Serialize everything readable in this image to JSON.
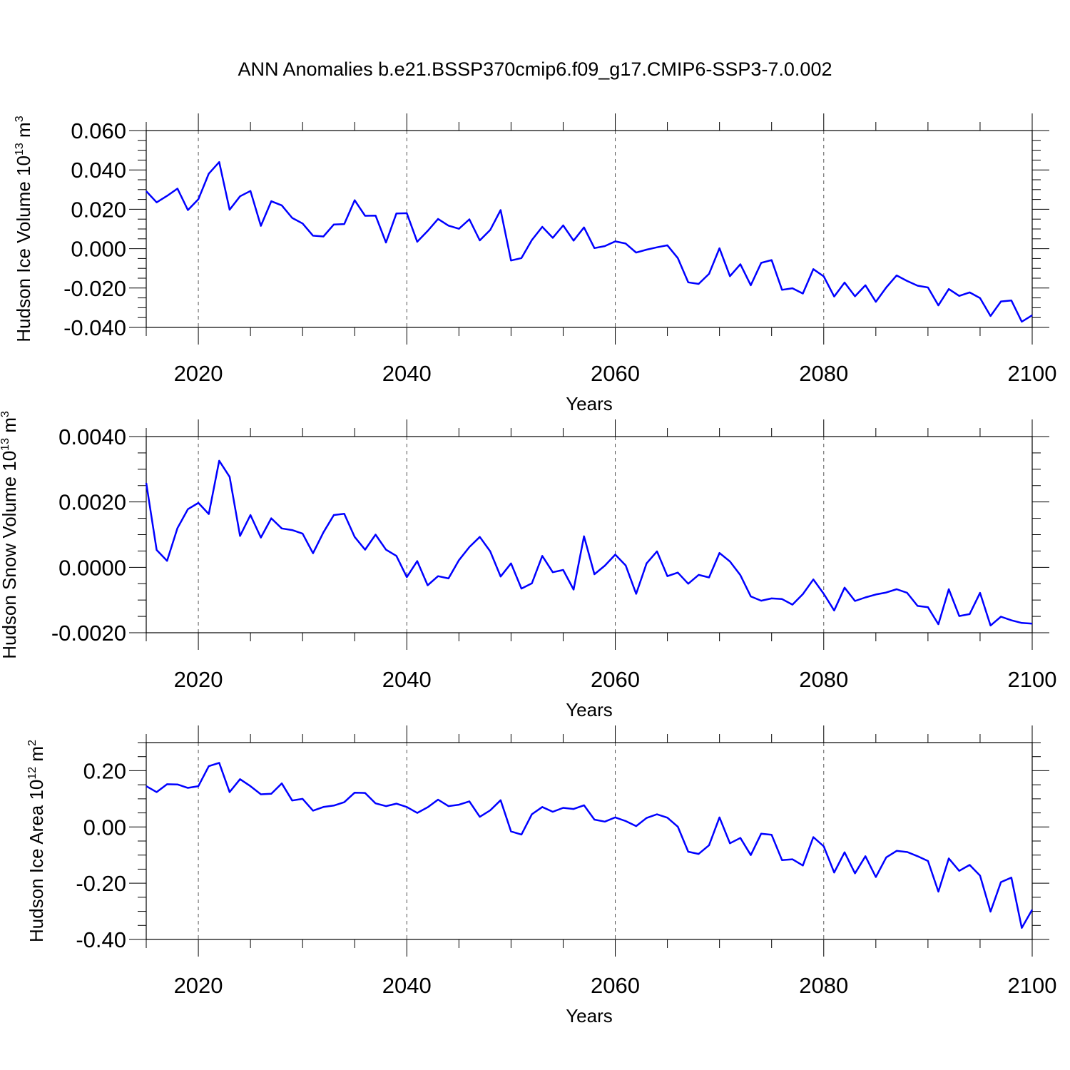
{
  "title": "ANN Anomalies b.e21.BSSP370cmip6.f09_g17.CMIP6-SSP3-7.0.002",
  "chart_data": [
    {
      "type": "line",
      "ylabel": "Hudson Ice Volume",
      "ylabel_scale": "10",
      "ylabel_exp": "13",
      "ylabel_unit": "m",
      "ylabel_unit_exp": "3",
      "xlabel": "Years",
      "xlim": [
        2015,
        2100
      ],
      "ylim": [
        -0.04,
        0.06
      ],
      "xticks": [
        "2020",
        "2040",
        "2060",
        "2080",
        "2100"
      ],
      "yticks": [
        "0.060",
        "0.040",
        "0.020",
        "0.000",
        "-0.020",
        "-0.040"
      ],
      "ytick_values": [
        0.06,
        0.04,
        0.02,
        0.0,
        -0.02,
        -0.04
      ],
      "grid": "vertical dashed at major x ticks",
      "color": "#0000ff",
      "x": [
        2015,
        2016,
        2017,
        2018,
        2019,
        2020,
        2021,
        2022,
        2023,
        2024,
        2025,
        2026,
        2027,
        2028,
        2029,
        2030,
        2031,
        2032,
        2033,
        2034,
        2035,
        2036,
        2037,
        2038,
        2039,
        2040,
        2041,
        2042,
        2043,
        2044,
        2045,
        2046,
        2047,
        2048,
        2049,
        2050,
        2051,
        2052,
        2053,
        2054,
        2055,
        2056,
        2057,
        2058,
        2059,
        2060,
        2061,
        2062,
        2063,
        2064,
        2065,
        2066,
        2067,
        2068,
        2069,
        2070,
        2071,
        2072,
        2073,
        2074,
        2075,
        2076,
        2077,
        2078,
        2079,
        2080,
        2081,
        2082,
        2083,
        2084,
        2085,
        2086,
        2087,
        2088,
        2089,
        2090,
        2091,
        2092,
        2093,
        2094,
        2095,
        2096,
        2097,
        2098,
        2099,
        2100
      ],
      "values": [
        0.0292,
        0.0235,
        0.0268,
        0.0305,
        0.0196,
        0.0251,
        0.0381,
        0.044,
        0.0198,
        0.0266,
        0.0293,
        0.0116,
        0.0241,
        0.022,
        0.0156,
        0.0128,
        0.0066,
        0.0062,
        0.0123,
        0.0125,
        0.0246,
        0.0167,
        0.0168,
        0.0031,
        0.0179,
        0.018,
        0.0035,
        0.009,
        0.0151,
        0.0117,
        0.0101,
        0.0149,
        0.0042,
        0.0095,
        0.0196,
        -0.006,
        -0.0048,
        0.0044,
        0.0111,
        0.0055,
        0.0118,
        0.0041,
        0.0108,
        0.0003,
        0.0013,
        0.0037,
        0.0026,
        -0.002,
        -0.0005,
        0.0007,
        0.0017,
        -0.0048,
        -0.0171,
        -0.0179,
        -0.0128,
        0.0002,
        -0.014,
        -0.0079,
        -0.0186,
        -0.0072,
        -0.0058,
        -0.0209,
        -0.0201,
        -0.0228,
        -0.0104,
        -0.0141,
        -0.0243,
        -0.0172,
        -0.0242,
        -0.0186,
        -0.027,
        -0.0197,
        -0.0136,
        -0.0164,
        -0.0188,
        -0.0197,
        -0.0288,
        -0.0205,
        -0.024,
        -0.0222,
        -0.0251,
        -0.0342,
        -0.0268,
        -0.0263,
        -0.0371,
        -0.0338
      ]
    },
    {
      "type": "line",
      "ylabel": "Hudson Snow Volume",
      "ylabel_scale": "10",
      "ylabel_exp": "13",
      "ylabel_unit": "m",
      "ylabel_unit_exp": "3",
      "xlabel": "Years",
      "xlim": [
        2015,
        2100
      ],
      "ylim": [
        -0.002,
        0.004
      ],
      "xticks": [
        "2020",
        "2040",
        "2060",
        "2080",
        "2100"
      ],
      "yticks": [
        "0.0040",
        "0.0020",
        "0.0000",
        "-0.0020"
      ],
      "ytick_values": [
        0.004,
        0.002,
        0.0,
        -0.002
      ],
      "grid": "vertical dashed at major x ticks",
      "color": "#0000ff",
      "x": [
        2015,
        2016,
        2017,
        2018,
        2019,
        2020,
        2021,
        2022,
        2023,
        2024,
        2025,
        2026,
        2027,
        2028,
        2029,
        2030,
        2031,
        2032,
        2033,
        2034,
        2035,
        2036,
        2037,
        2038,
        2039,
        2040,
        2041,
        2042,
        2043,
        2044,
        2045,
        2046,
        2047,
        2048,
        2049,
        2050,
        2051,
        2052,
        2053,
        2054,
        2055,
        2056,
        2057,
        2058,
        2059,
        2060,
        2061,
        2062,
        2063,
        2064,
        2065,
        2066,
        2067,
        2068,
        2069,
        2070,
        2071,
        2072,
        2073,
        2074,
        2075,
        2076,
        2077,
        2078,
        2079,
        2080,
        2081,
        2082,
        2083,
        2084,
        2085,
        2086,
        2087,
        2088,
        2089,
        2090,
        2091,
        2092,
        2093,
        2094,
        2095,
        2096,
        2097,
        2098,
        2099,
        2100
      ],
      "values": [
        0.00258,
        0.00053,
        0.0002,
        0.0012,
        0.00178,
        0.00197,
        0.00163,
        0.00326,
        0.00277,
        0.00096,
        0.0016,
        0.00091,
        0.0015,
        0.00119,
        0.00114,
        0.00103,
        0.00043,
        0.00107,
        0.0016,
        0.00164,
        0.00093,
        0.00054,
        0.001,
        0.00054,
        0.00035,
        -0.0003,
        0.00019,
        -0.00055,
        -0.00027,
        -0.00034,
        0.00022,
        0.00062,
        0.00093,
        0.00049,
        -0.00028,
        0.00012,
        -0.00065,
        -0.00049,
        0.00035,
        -0.00015,
        -8e-05,
        -0.00068,
        0.00095,
        -0.00021,
        5e-05,
        0.00039,
        6e-05,
        -0.00081,
        0.00012,
        0.00049,
        -0.00027,
        -0.00016,
        -0.0005,
        -0.00023,
        -0.00031,
        0.00044,
        0.00018,
        -0.00024,
        -0.00089,
        -0.00102,
        -0.00095,
        -0.00097,
        -0.00114,
        -0.00082,
        -0.00037,
        -0.00081,
        -0.00132,
        -0.00062,
        -0.00103,
        -0.00092,
        -0.00083,
        -0.00077,
        -0.00067,
        -0.00078,
        -0.00118,
        -0.00122,
        -0.00174,
        -0.00067,
        -0.00149,
        -0.00143,
        -0.00078,
        -0.00178,
        -0.00151,
        -0.00162,
        -0.0017,
        -0.00172
      ]
    },
    {
      "type": "line",
      "ylabel": "Hudson Ice Area",
      "ylabel_scale": "10",
      "ylabel_exp": "12",
      "ylabel_unit": "m",
      "ylabel_unit_exp": "2",
      "xlabel": "Years",
      "xlim": [
        2015,
        2100
      ],
      "ylim": [
        -0.4,
        0.3
      ],
      "xticks": [
        "2020",
        "2040",
        "2060",
        "2080",
        "2100"
      ],
      "yticks": [
        "0.20",
        "0.00",
        "-0.20",
        "-0.40"
      ],
      "ytick_values": [
        0.2,
        0.0,
        -0.2,
        -0.4
      ],
      "grid": "vertical dashed at major x ticks",
      "color": "#0000ff",
      "x": [
        2015,
        2016,
        2017,
        2018,
        2019,
        2020,
        2021,
        2022,
        2023,
        2024,
        2025,
        2026,
        2027,
        2028,
        2029,
        2030,
        2031,
        2032,
        2033,
        2034,
        2035,
        2036,
        2037,
        2038,
        2039,
        2040,
        2041,
        2042,
        2043,
        2044,
        2045,
        2046,
        2047,
        2048,
        2049,
        2050,
        2051,
        2052,
        2053,
        2054,
        2055,
        2056,
        2057,
        2058,
        2059,
        2060,
        2061,
        2062,
        2063,
        2064,
        2065,
        2066,
        2067,
        2068,
        2069,
        2070,
        2071,
        2072,
        2073,
        2074,
        2075,
        2076,
        2077,
        2078,
        2079,
        2080,
        2081,
        2082,
        2083,
        2084,
        2085,
        2086,
        2087,
        2088,
        2089,
        2090,
        2091,
        2092,
        2093,
        2094,
        2095,
        2096,
        2097,
        2098,
        2099,
        2100
      ],
      "values": [
        0.145,
        0.124,
        0.152,
        0.151,
        0.139,
        0.145,
        0.216,
        0.228,
        0.124,
        0.17,
        0.145,
        0.116,
        0.118,
        0.155,
        0.094,
        0.1,
        0.058,
        0.071,
        0.076,
        0.088,
        0.122,
        0.121,
        0.084,
        0.074,
        0.083,
        0.071,
        0.05,
        0.07,
        0.097,
        0.074,
        0.079,
        0.091,
        0.036,
        0.059,
        0.095,
        -0.016,
        -0.027,
        0.045,
        0.071,
        0.054,
        0.068,
        0.064,
        0.077,
        0.026,
        0.019,
        0.034,
        0.021,
        0.003,
        0.032,
        0.045,
        0.033,
        0.001,
        -0.088,
        -0.096,
        -0.065,
        0.034,
        -0.058,
        -0.039,
        -0.1,
        -0.024,
        -0.028,
        -0.118,
        -0.115,
        -0.137,
        -0.036,
        -0.069,
        -0.162,
        -0.09,
        -0.165,
        -0.104,
        -0.178,
        -0.108,
        -0.085,
        -0.089,
        -0.104,
        -0.121,
        -0.23,
        -0.112,
        -0.156,
        -0.135,
        -0.173,
        -0.301,
        -0.196,
        -0.18,
        -0.359,
        -0.294
      ]
    }
  ]
}
